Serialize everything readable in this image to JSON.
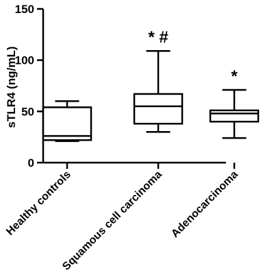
{
  "chart_data": {
    "type": "box",
    "title": "",
    "ylabel": "sTLR4 (ng/mL)",
    "xlabel": "",
    "ylim": [
      0,
      150
    ],
    "yticks": [
      0,
      50,
      100,
      150
    ],
    "categories": [
      "Healthy controls",
      "Squamous cell carcinoma",
      "Adenocarcinoma"
    ],
    "boxes": [
      {
        "category": "Healthy controls",
        "min": 21,
        "q1": 22,
        "median": 26,
        "q3": 54,
        "max": 60,
        "annotation": ""
      },
      {
        "category": "Squamous cell carcinoma",
        "min": 30,
        "q1": 38,
        "median": 55,
        "q3": 67,
        "max": 109,
        "annotation": "* #"
      },
      {
        "category": "Adenocarcinoma",
        "min": 24,
        "q1": 40,
        "median": 48,
        "q3": 51,
        "max": 71,
        "annotation": "*"
      }
    ],
    "grid": false,
    "legend": "none"
  }
}
